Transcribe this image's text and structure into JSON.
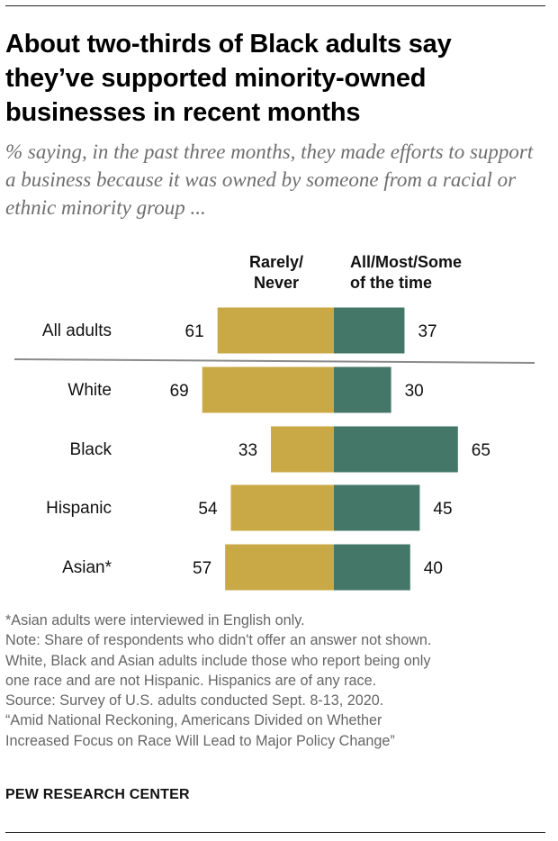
{
  "title": "About two-thirds of Black adults say they’ve supported minority-owned businesses in recent months",
  "subtitle": "% saying, in the past three months, they made efforts to support a business because it was owned by someone from a racial or ethnic minority group ...",
  "chart_data": {
    "type": "bar",
    "orientation": "horizontal-diverging",
    "categories": [
      "All adults",
      "White",
      "Black",
      "Hispanic",
      "Asian*"
    ],
    "series": [
      {
        "name": "Rarely/ Never",
        "name_lines": [
          "Rarely/",
          "Never"
        ],
        "color": "#c9a846",
        "values": [
          61,
          69,
          33,
          54,
          57
        ]
      },
      {
        "name": "All/Most/Some of the time",
        "name_lines": [
          "All/Most/Some",
          "of the time"
        ],
        "color": "#457768",
        "values": [
          37,
          30,
          65,
          45,
          40
        ]
      }
    ],
    "title": "About two-thirds of Black adults say they’ve supported minority-owned businesses in recent months",
    "xlabel": "",
    "ylabel": "",
    "xlim": [
      0,
      100
    ],
    "legend": "top"
  },
  "colors": {
    "divider": "#8a8a8a",
    "label": "#111111"
  },
  "footnotes": [
    "*Asian adults were interviewed in English only.",
    "Note: Share of respondents who didn't offer an answer not shown.",
    "White, Black and Asian adults include those who report being only",
    "one race and are not Hispanic. Hispanics are of any race.",
    "Source: Survey of U.S. adults conducted Sept. 8-13, 2020.",
    "“Amid National Reckoning, Americans Divided on Whether",
    "Increased Focus on Race Will Lead to Major Policy Change”"
  ],
  "brand": "PEW RESEARCH CENTER"
}
